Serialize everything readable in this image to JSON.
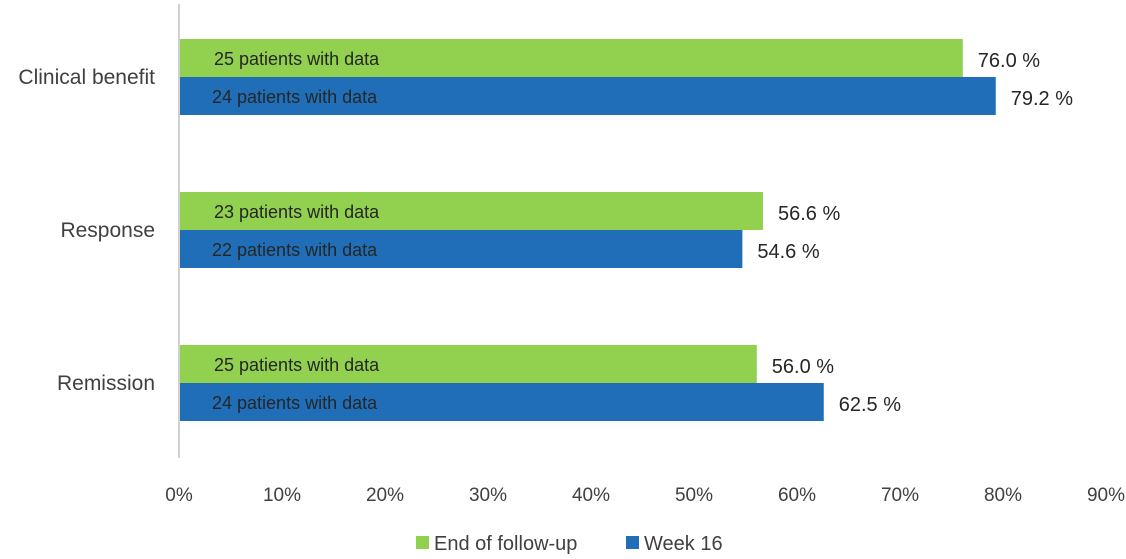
{
  "chart_data": {
    "type": "bar",
    "orientation": "horizontal",
    "categories": [
      "Clinical benefit",
      "Response",
      "Remission"
    ],
    "series": [
      {
        "name": "End of follow-up",
        "color": "#92d050",
        "values": [
          76.0,
          56.6,
          56.0
        ],
        "value_labels": [
          "76.0 %",
          "56.6 %",
          "56.0 %"
        ],
        "bar_labels": [
          "25 patients with data",
          "23 patients with data",
          "25 patients with data"
        ]
      },
      {
        "name": "Week 16",
        "color": "#1f6eb7",
        "values": [
          79.2,
          54.6,
          62.5
        ],
        "value_labels": [
          "79.2 %",
          "54.6 %",
          "62.5 %"
        ],
        "bar_labels": [
          "24 patients with data",
          "22 patients with data",
          "24 patients with data"
        ]
      }
    ],
    "xlim": [
      0,
      90
    ],
    "xticks": [
      "0%",
      "10%",
      "20%",
      "30%",
      "40%",
      "50%",
      "60%",
      "70%",
      "80%",
      "90%"
    ],
    "grid": false,
    "legend_position": "bottom"
  }
}
